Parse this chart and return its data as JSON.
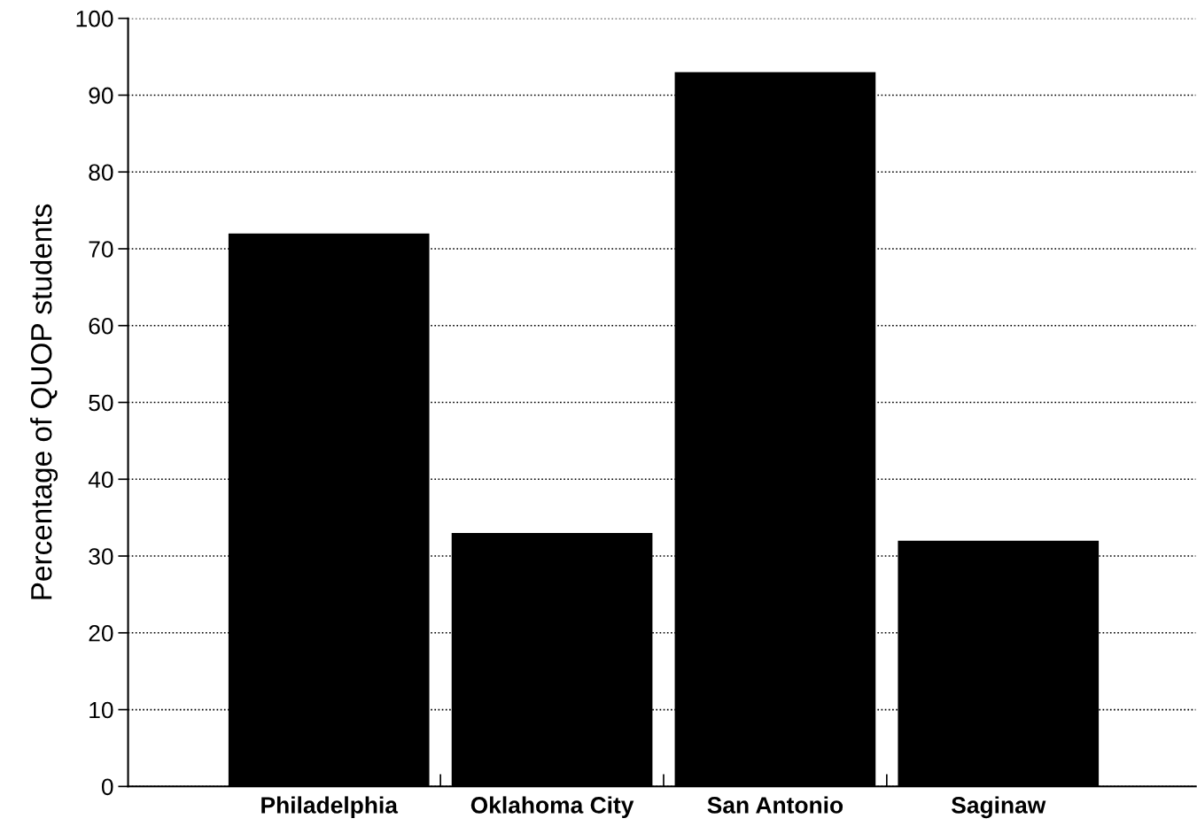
{
  "chart_data": {
    "type": "bar",
    "ylabel": "Percentage of QUOP students",
    "categories": [
      "Philadelphia",
      "Oklahoma City",
      "San Antonio",
      "Saginaw"
    ],
    "values": [
      72,
      33,
      93,
      32
    ],
    "color": "#000000",
    "ylim": [
      0,
      100
    ],
    "yticks": [
      0,
      10,
      20,
      30,
      40,
      50,
      60,
      70,
      80,
      90,
      100
    ],
    "grid": "y"
  }
}
